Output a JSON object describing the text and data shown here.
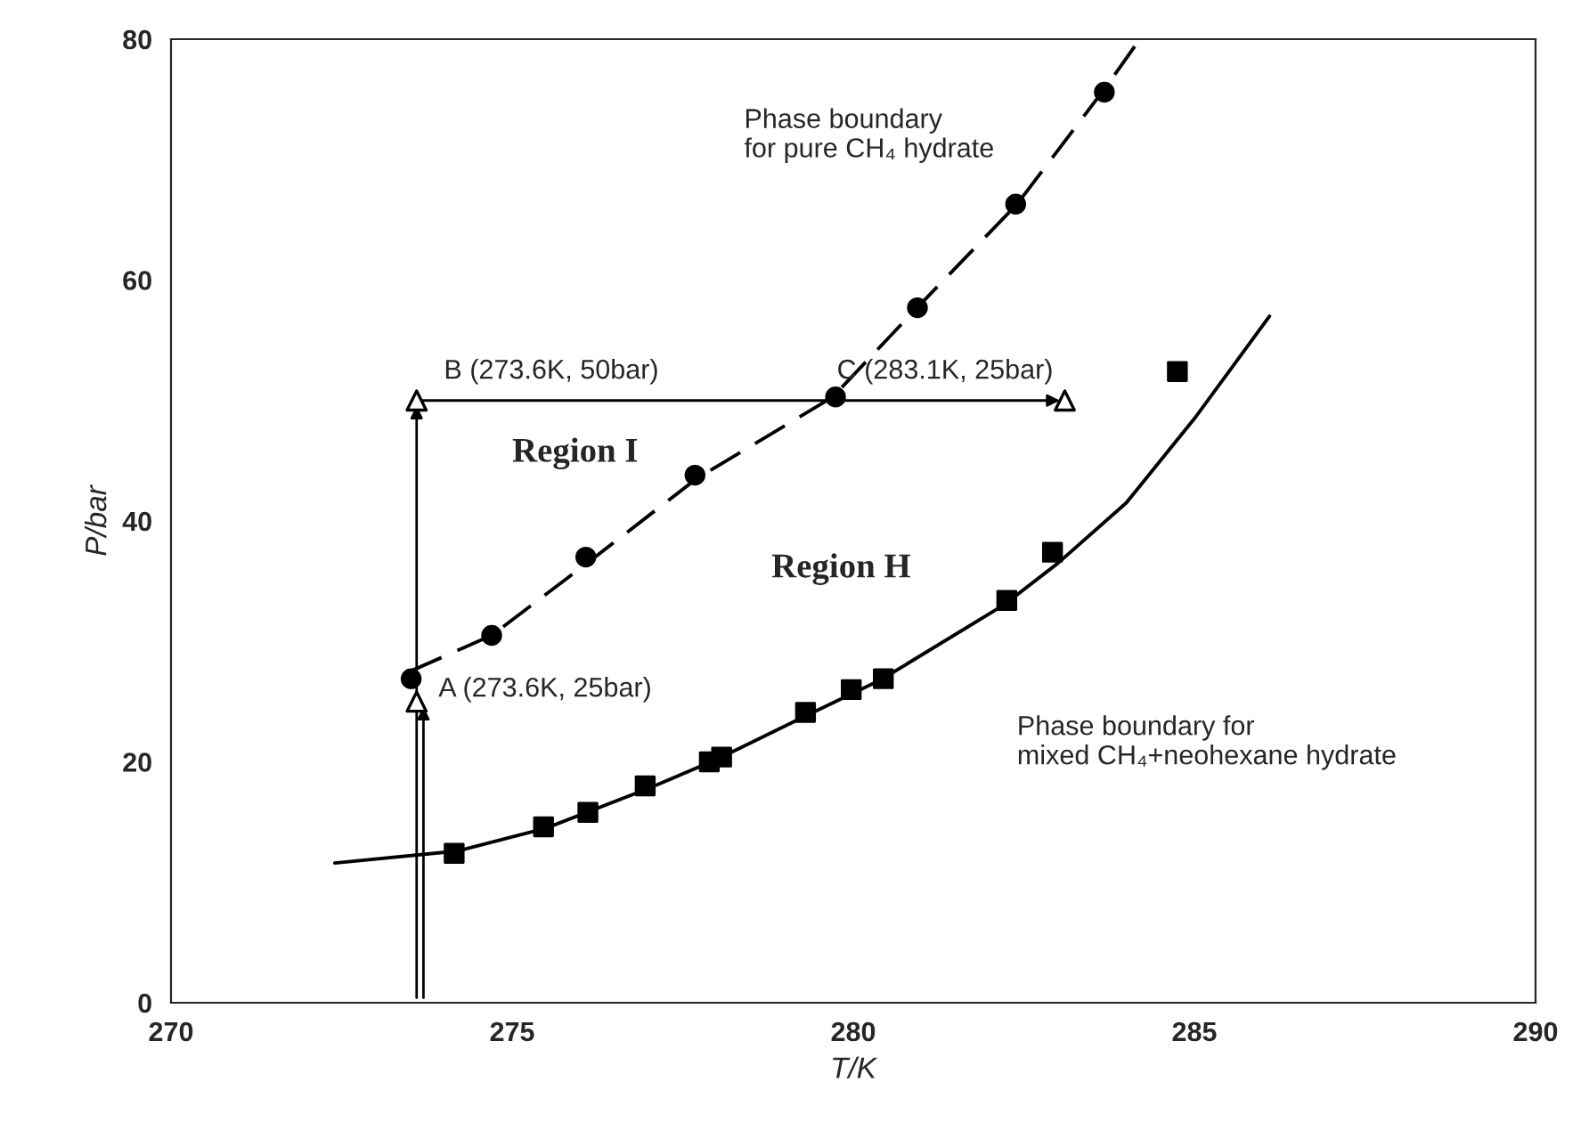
{
  "chart_data": {
    "type": "scatter",
    "xlabel": "T/K",
    "ylabel": "P/bar",
    "xlim": [
      270,
      290
    ],
    "xticks": [
      270,
      275,
      280,
      285,
      290
    ],
    "ylim": [
      0,
      80
    ],
    "yticks": [
      0,
      20,
      40,
      60,
      80
    ],
    "grid": false,
    "legend": false,
    "series": [
      {
        "type": "line",
        "color": "#000000",
        "line_style": "dashed",
        "marker": "none",
        "x": [
          273.5,
          274.7,
          276.1,
          277.7,
          279.7,
          280.9,
          282.4,
          283.7,
          284.2
        ],
        "values": [
          27.5,
          30.5,
          36.5,
          43.5,
          50.3,
          57.5,
          66.3,
          76,
          80
        ]
      },
      {
        "type": "line",
        "color": "#000000",
        "line_style": "solid",
        "marker": "none",
        "x": [
          272.4,
          274.2,
          275.5,
          277,
          278,
          279.3,
          280.4,
          282.2,
          283,
          284,
          285,
          286.1
        ],
        "values": [
          11.6,
          12.6,
          14.5,
          17.8,
          20.2,
          23.8,
          26.8,
          33.0,
          36.5,
          41.5,
          48.5,
          57
        ]
      },
      {
        "color": "#000000",
        "marker": "circle",
        "x": [
          273.52,
          274.7,
          276.08,
          277.68,
          279.74,
          280.94,
          282.38,
          283.68
        ],
        "values": [
          26.9,
          30.5,
          37.0,
          43.8,
          50.3,
          57.7,
          66.3,
          75.6
        ]
      },
      {
        "color": "#000000",
        "marker": "square",
        "x": [
          274.15,
          275.46,
          276.11,
          276.95,
          277.89,
          278.07,
          279.3,
          279.97,
          280.44,
          282.25,
          282.92,
          284.75
        ],
        "values": [
          12.4,
          14.6,
          15.8,
          18.0,
          20.0,
          20.4,
          24.1,
          26.0,
          26.9,
          33.4,
          37.4,
          52.4
        ]
      },
      {
        "color": "#000000",
        "marker": "triangle",
        "x": [
          273.6,
          273.6,
          283.1
        ],
        "values": [
          25,
          50,
          50
        ]
      }
    ],
    "annotations": [
      "A (273.6K, 25bar)",
      "B (273.6K, 50bar)",
      "C (283.1K, 25bar)",
      "Phase boundary\nfor pure CH₄ hydrate",
      "Region I",
      "Region H",
      "Phase boundary for\nmixed CH₄+neohexane hydrate"
    ]
  }
}
